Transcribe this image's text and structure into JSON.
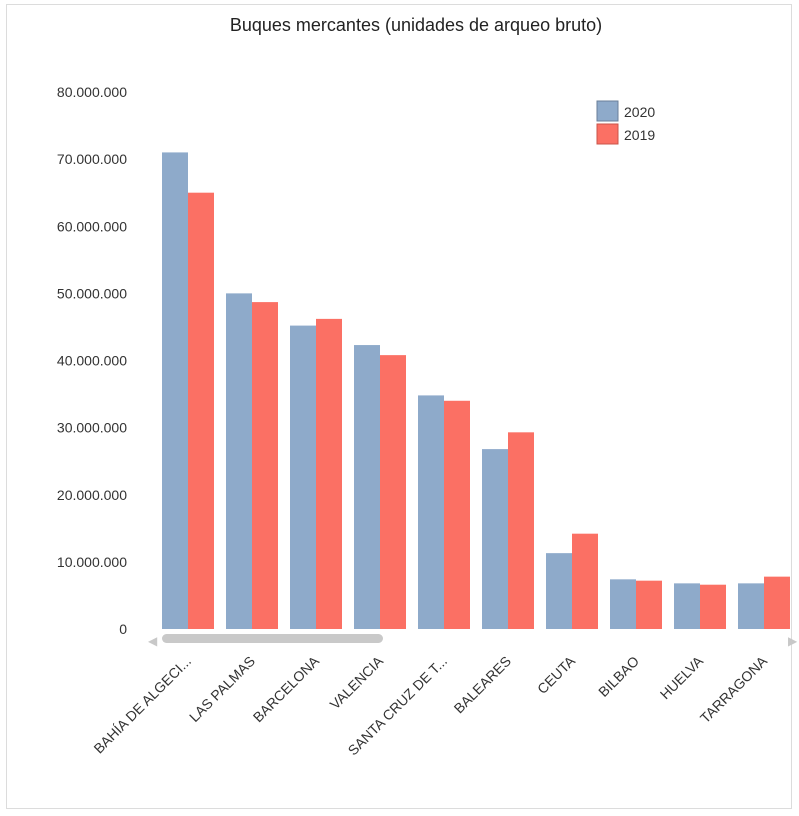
{
  "chart_data": {
    "type": "bar",
    "title": "Buques mercantes (unidades de arqueo bruto)",
    "xlabel": "",
    "ylabel": "",
    "ylim": [
      0,
      80000000
    ],
    "yticks": [
      "0",
      "10.000.000",
      "20.000.000",
      "30.000.000",
      "40.000.000",
      "50.000.000",
      "60.000.000",
      "70.000.000",
      "80.000.000"
    ],
    "categories": [
      "BAHÍA DE ALGECI...",
      "LAS PALMAS",
      "BARCELONA",
      "VALENCIA",
      "SANTA CRUZ DE T...",
      "BALEARES",
      "CEUTA",
      "BILBAO",
      "HUELVA",
      "TARRAGONA"
    ],
    "series": [
      {
        "name": "2020",
        "color": "#8eaaca",
        "values": [
          71000000,
          50000000,
          45200000,
          42300000,
          34800000,
          26800000,
          11300000,
          7400000,
          6800000,
          6800000
        ]
      },
      {
        "name": "2019",
        "color": "#fb7064",
        "values": [
          65000000,
          48700000,
          46200000,
          40800000,
          34000000,
          29300000,
          14200000,
          7200000,
          6600000,
          7800000
        ]
      }
    ],
    "legend_position": "top-right",
    "grid": false
  },
  "scrollbar": {
    "left_arrow": "◀",
    "right_arrow": "▶"
  }
}
